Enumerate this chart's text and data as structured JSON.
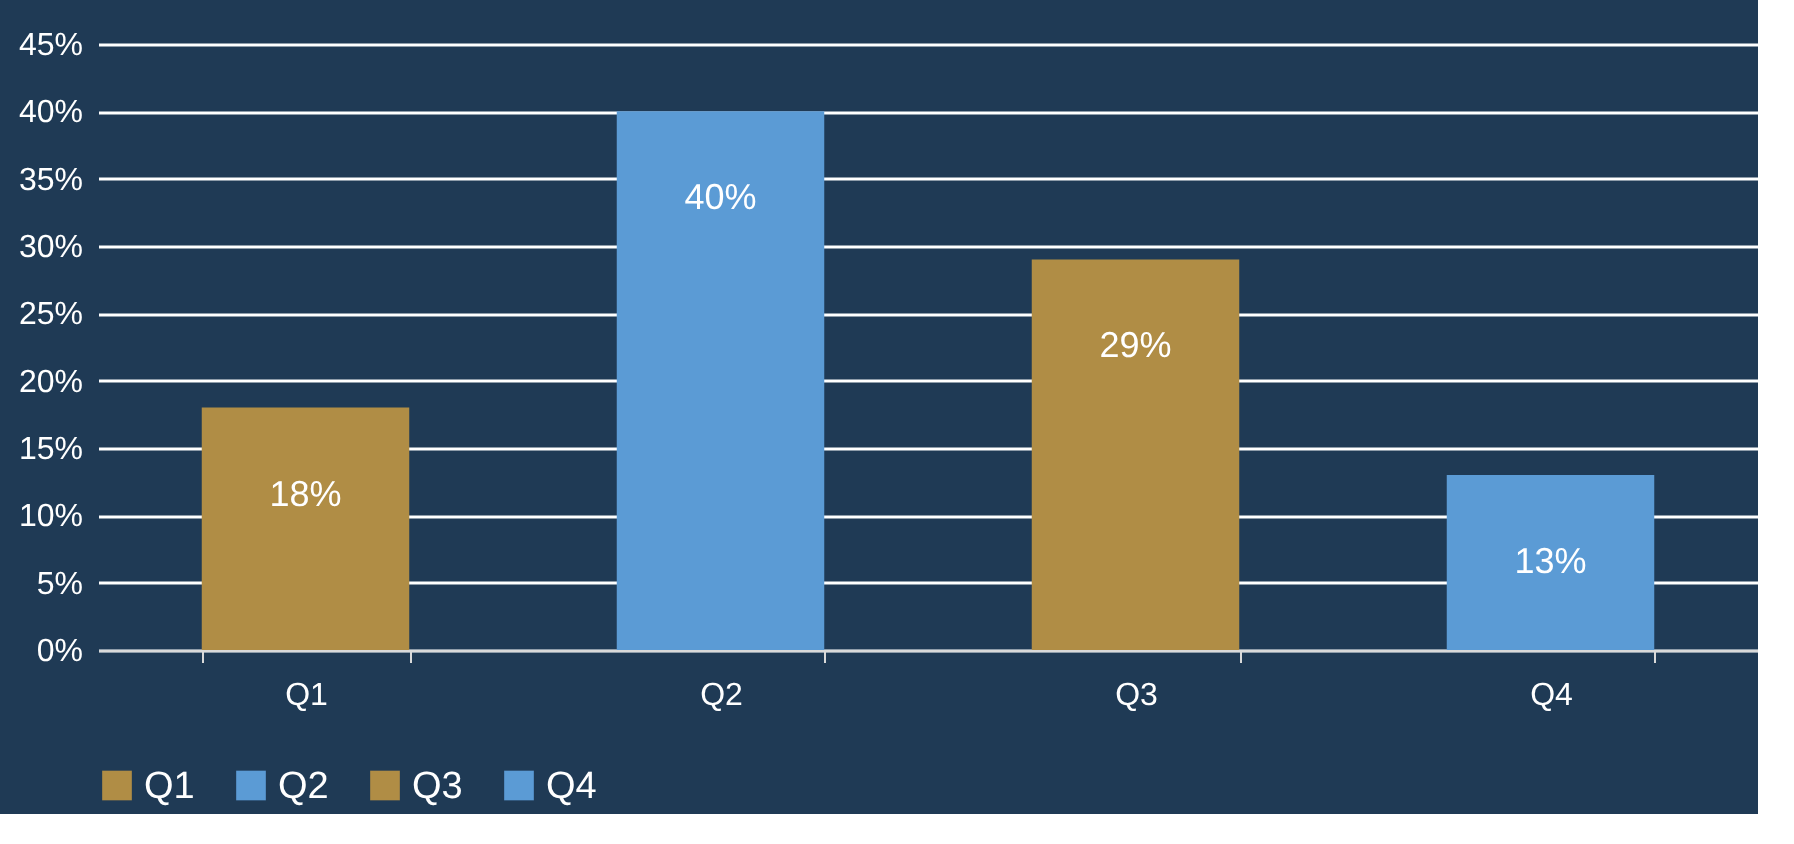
{
  "chart_data": {
    "type": "bar",
    "categories": [
      "Q1",
      "Q2",
      "Q3",
      "Q4"
    ],
    "series": [
      {
        "name": "Q1",
        "color": "#b08d45",
        "values": [
          18,
          null,
          null,
          null
        ],
        "value_labels": [
          "18%",
          null,
          null,
          null
        ]
      },
      {
        "name": "Q2",
        "color": "#5b9bd5",
        "values": [
          null,
          40,
          null,
          null
        ],
        "value_labels": [
          null,
          "40%",
          null,
          null
        ]
      },
      {
        "name": "Q3",
        "color": "#b08d45",
        "values": [
          null,
          null,
          29,
          null
        ],
        "value_labels": [
          null,
          null,
          "29%",
          null
        ]
      },
      {
        "name": "Q4",
        "color": "#5b9bd5",
        "values": [
          null,
          null,
          null,
          13
        ],
        "value_labels": [
          null,
          null,
          null,
          "13%"
        ]
      }
    ],
    "ylim": [
      0,
      45
    ],
    "yticks": [
      {
        "value": 0,
        "label": "0%"
      },
      {
        "value": 5,
        "label": "5%"
      },
      {
        "value": 10,
        "label": "10%"
      },
      {
        "value": 15,
        "label": "15%"
      },
      {
        "value": 20,
        "label": "20%"
      },
      {
        "value": 25,
        "label": "25%"
      },
      {
        "value": 30,
        "label": "30%"
      },
      {
        "value": 35,
        "label": "35%"
      },
      {
        "value": 40,
        "label": "40%"
      },
      {
        "value": 45,
        "label": "45%"
      }
    ],
    "grid": "y",
    "legend": "bottom"
  }
}
